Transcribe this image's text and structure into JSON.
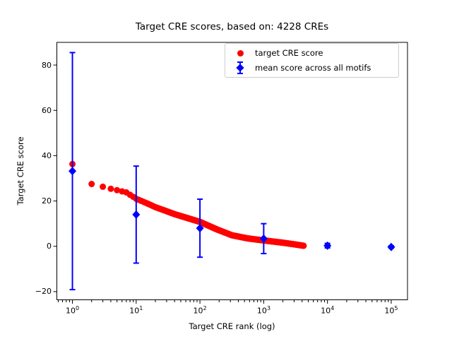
{
  "title": "Target CRE scores, based on: 4228 CREs",
  "chart_data": {
    "type": "scatter",
    "title": "Target CRE scores, based on: 4228 CREs",
    "xlabel": "Target CRE rank (log)",
    "ylabel": "Target CRE score",
    "x_scale": "log",
    "xlim": [
      0.57,
      180000
    ],
    "ylim": [
      -23.6,
      90.0
    ],
    "x_ticks": [
      1,
      10,
      100,
      1000,
      10000,
      100000
    ],
    "x_tick_exponents": [
      0,
      1,
      2,
      3,
      4,
      5
    ],
    "y_ticks": [
      -20,
      0,
      20,
      40,
      60,
      80
    ],
    "n_cres": 4228,
    "grid": false,
    "legend_position": "upper right",
    "series": [
      {
        "name": "target CRE score",
        "type": "scatter-curve",
        "marker": "circle",
        "color": "#ff0000",
        "n_points": 4228,
        "anchors": [
          [
            1,
            36.3
          ],
          [
            2,
            27.5
          ],
          [
            3,
            26.3
          ],
          [
            4,
            25.4
          ],
          [
            5,
            24.8
          ],
          [
            7,
            23.8
          ],
          [
            10,
            21.0
          ],
          [
            15,
            18.9
          ],
          [
            20,
            17.3
          ],
          [
            30,
            15.5
          ],
          [
            40,
            14.2
          ],
          [
            60,
            12.7
          ],
          [
            100,
            10.8
          ],
          [
            180,
            7.6
          ],
          [
            316,
            4.9
          ],
          [
            560,
            3.5
          ],
          [
            1000,
            2.6
          ],
          [
            2000,
            1.6
          ],
          [
            3000,
            0.9
          ],
          [
            4228,
            0.25
          ]
        ]
      },
      {
        "name": "mean score across all motifs",
        "type": "errorbar",
        "marker": "diamond",
        "color": "#0000ff",
        "x": [
          1,
          10,
          100,
          1000,
          10000,
          100000
        ],
        "y": [
          33.2,
          14.0,
          8.0,
          3.4,
          0.3,
          -0.3
        ],
        "yerr": [
          52.3,
          21.4,
          12.8,
          6.6,
          1.0,
          0.5
        ]
      }
    ]
  },
  "colors": {
    "target": "#ff0000",
    "mean": "#0000ff",
    "axes": "#000000",
    "legend_border": "#cccccc",
    "background": "#ffffff"
  }
}
